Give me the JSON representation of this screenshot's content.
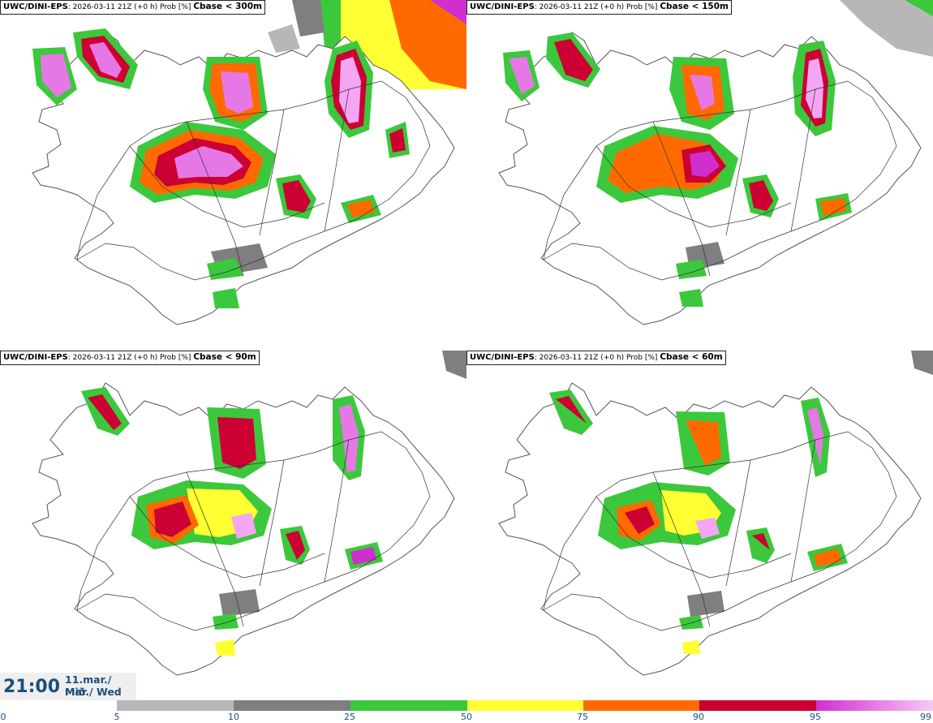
{
  "panels": [
    {
      "model": "UWC/DINI-EPS",
      "meta": ": 2026-03-11 21Z (+0 h) Prob [%] ",
      "threshold": "Cbase < 300m"
    },
    {
      "model": "UWC/DINI-EPS",
      "meta": ": 2026-03-11 21Z (+0 h) Prob [%] ",
      "threshold": "Cbase < 150m"
    },
    {
      "model": "UWC/DINI-EPS",
      "meta": ": 2026-03-11 21Z (+0 h) Prob [%] ",
      "threshold": "Cbase < 90m"
    },
    {
      "model": "UWC/DINI-EPS",
      "meta": ": 2026-03-11 21Z (+0 h) Prob [%] ",
      "threshold": "Cbase < 60m"
    }
  ],
  "valid_time": {
    "time": "21:00",
    "date": "11.mar./ Mar",
    "weekday": "Mið./ Wed"
  },
  "colorbar": {
    "ticks": [
      "0",
      "5",
      "10",
      "25",
      "50",
      "75",
      "90",
      "95",
      "99"
    ],
    "segments": [
      {
        "from": "5",
        "to": "10",
        "color": "#b7b7b7"
      },
      {
        "from": "10",
        "to": "25",
        "color": "#7f7f7f"
      },
      {
        "from": "25",
        "to": "50",
        "color": "#3cc83c"
      },
      {
        "from": "50",
        "to": "75",
        "color": "#ffff33"
      },
      {
        "from": "75",
        "to": "90",
        "color": "#ff6a00"
      },
      {
        "from": "90",
        "to": "95",
        "color": "#cc0033"
      },
      {
        "from": "95",
        "to": "99",
        "color": "#d02fd0",
        "gradient_to": "#f7c8f7"
      }
    ]
  },
  "colors": {
    "coastline": "#555555",
    "roads": "#333333",
    "text": "#1d4e7c"
  }
}
